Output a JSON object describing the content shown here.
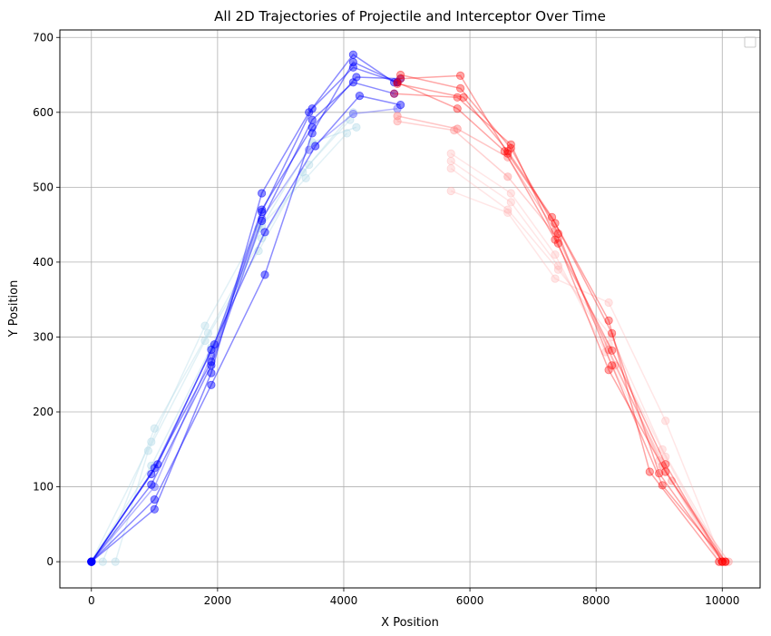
{
  "chart_data": {
    "type": "line",
    "title": "All 2D Trajectories of Projectile and Interceptor Over Time",
    "xlabel": "X Position",
    "ylabel": "Y Position",
    "xlim": [
      -500,
      10600
    ],
    "ylim": [
      -35,
      710
    ],
    "xticks": [
      0,
      2000,
      4000,
      6000,
      8000,
      10000
    ],
    "yticks": [
      0,
      100,
      200,
      300,
      400,
      500,
      600,
      700
    ],
    "grid": true,
    "legend": {
      "entries": [],
      "placement": "top-right"
    },
    "marker": "circle",
    "colors": {
      "interceptor_early": "#add8e6",
      "interceptor_late": "#0000ff",
      "projectile_early": "#ffb6b6",
      "projectile_late": "#ff0000"
    },
    "series": [
      {
        "group": "interceptor",
        "points": [
          [
            0,
            0
          ],
          [
            950,
            160
          ],
          [
            1800,
            315
          ],
          [
            2650,
            445
          ],
          [
            3400,
            512
          ],
          [
            4050,
            572
          ]
        ],
        "color": "#add8e6",
        "alpha": 0.35
      },
      {
        "group": "interceptor",
        "points": [
          [
            180,
            0
          ],
          [
            1000,
            178
          ],
          [
            1850,
            305
          ],
          [
            2700,
            432
          ],
          [
            3450,
            530
          ],
          [
            4100,
            590
          ]
        ],
        "color": "#add8e6",
        "alpha": 0.35
      },
      {
        "group": "interceptor",
        "points": [
          [
            380,
            0
          ],
          [
            900,
            148
          ],
          [
            1800,
            295
          ],
          [
            2650,
            415
          ],
          [
            3350,
            520
          ],
          [
            4150,
            600
          ]
        ],
        "color": "#add8e6",
        "alpha": 0.35
      },
      {
        "group": "interceptor",
        "points": [
          [
            0,
            0
          ],
          [
            950,
            128
          ],
          [
            1900,
            286
          ],
          [
            2700,
            448
          ],
          [
            3500,
            560
          ],
          [
            4200,
            580
          ]
        ],
        "color": "#add8e6",
        "alpha": 0.4
      },
      {
        "group": "interceptor",
        "points": [
          [
            0,
            0
          ],
          [
            1000,
            100
          ],
          [
            1900,
            275
          ],
          [
            2700,
            458
          ],
          [
            3450,
            550
          ],
          [
            4150,
            598
          ],
          [
            4850,
            605
          ]
        ],
        "color": "#6f6fff",
        "alpha": 0.5
      },
      {
        "group": "interceptor",
        "points": [
          [
            0,
            0
          ],
          [
            950,
            103
          ],
          [
            1900,
            262
          ],
          [
            2700,
            455
          ],
          [
            3500,
            590
          ],
          [
            4150,
            640
          ],
          [
            4800,
            625
          ]
        ],
        "color": "#0000ff",
        "alpha": 0.45
      },
      {
        "group": "interceptor",
        "points": [
          [
            0,
            0
          ],
          [
            1000,
            83
          ],
          [
            1900,
            236
          ],
          [
            2750,
            383
          ],
          [
            3500,
            572
          ],
          [
            4150,
            667
          ],
          [
            4850,
            640
          ]
        ],
        "color": "#0000ff",
        "alpha": 0.45
      },
      {
        "group": "interceptor",
        "points": [
          [
            0,
            0
          ],
          [
            1000,
            70
          ],
          [
            1900,
            252
          ],
          [
            2700,
            492
          ],
          [
            3450,
            600
          ],
          [
            4150,
            677
          ],
          [
            4800,
            640
          ]
        ],
        "color": "#0000ff",
        "alpha": 0.45
      },
      {
        "group": "interceptor",
        "points": [
          [
            0,
            0
          ],
          [
            950,
            117
          ],
          [
            1900,
            267
          ],
          [
            2700,
            467
          ],
          [
            3500,
            605
          ],
          [
            4150,
            660
          ],
          [
            4850,
            640
          ]
        ],
        "color": "#0000ff",
        "alpha": 0.45
      },
      {
        "group": "interceptor",
        "points": [
          [
            0,
            0
          ],
          [
            1000,
            125
          ],
          [
            1950,
            290
          ],
          [
            2700,
            470
          ],
          [
            3500,
            580
          ],
          [
            4200,
            647
          ],
          [
            4900,
            645
          ]
        ],
        "color": "#0000ff",
        "alpha": 0.45
      },
      {
        "group": "interceptor",
        "points": [
          [
            0,
            0
          ],
          [
            1050,
            130
          ],
          [
            1900,
            283
          ],
          [
            2750,
            440
          ],
          [
            3550,
            555
          ],
          [
            4250,
            622
          ],
          [
            4900,
            610
          ]
        ],
        "color": "#0000ff",
        "alpha": 0.45
      },
      {
        "group": "projectile",
        "points": [
          [
            10000,
            0
          ],
          [
            9100,
            188
          ],
          [
            8200,
            346
          ],
          [
            7350,
            378
          ],
          [
            6600,
            466
          ],
          [
            5700,
            495
          ]
        ],
        "color": "#ffb6b6",
        "alpha": 0.35
      },
      {
        "group": "projectile",
        "points": [
          [
            10050,
            0
          ],
          [
            9050,
            150
          ],
          [
            8250,
            300
          ],
          [
            7400,
            390
          ],
          [
            6600,
            470
          ],
          [
            5700,
            525
          ]
        ],
        "color": "#ffb6b6",
        "alpha": 0.35
      },
      {
        "group": "projectile",
        "points": [
          [
            10000,
            0
          ],
          [
            9100,
            140
          ],
          [
            8200,
            290
          ],
          [
            7400,
            395
          ],
          [
            6650,
            480
          ],
          [
            5700,
            535
          ]
        ],
        "color": "#ffb6b6",
        "alpha": 0.35
      },
      {
        "group": "projectile",
        "points": [
          [
            9950,
            0
          ],
          [
            9000,
            135
          ],
          [
            8150,
            280
          ],
          [
            7350,
            410
          ],
          [
            6650,
            492
          ],
          [
            5700,
            545
          ]
        ],
        "color": "#ffb6b6",
        "alpha": 0.35
      },
      {
        "group": "projectile",
        "points": [
          [
            10100,
            0
          ],
          [
            9200,
            108
          ],
          [
            8300,
            262
          ],
          [
            7400,
            432
          ],
          [
            6600,
            514
          ],
          [
            5750,
            576
          ],
          [
            4850,
            588
          ]
        ],
        "color": "#ff9a9a",
        "alpha": 0.45
      },
      {
        "group": "projectile",
        "points": [
          [
            10000,
            0
          ],
          [
            9050,
            128
          ],
          [
            8200,
            283
          ],
          [
            7350,
            442
          ],
          [
            6600,
            540
          ],
          [
            5800,
            578
          ],
          [
            4850,
            595
          ]
        ],
        "color": "#ff8080",
        "alpha": 0.45
      },
      {
        "group": "projectile",
        "points": [
          [
            10050,
            0
          ],
          [
            9100,
            120
          ],
          [
            8200,
            256
          ],
          [
            7400,
            425
          ],
          [
            6650,
            557
          ],
          [
            5800,
            620
          ],
          [
            4800,
            625
          ]
        ],
        "color": "#ff0000",
        "alpha": 0.35
      },
      {
        "group": "projectile",
        "points": [
          [
            10000,
            0
          ],
          [
            9000,
            118
          ],
          [
            8250,
            305
          ],
          [
            7350,
            452
          ],
          [
            6600,
            545
          ],
          [
            5850,
            649
          ],
          [
            4900,
            645
          ]
        ],
        "color": "#ff0000",
        "alpha": 0.35
      },
      {
        "group": "projectile",
        "points": [
          [
            9950,
            0
          ],
          [
            8850,
            120
          ],
          [
            8200,
            322
          ],
          [
            7300,
            460
          ],
          [
            6600,
            548
          ],
          [
            5900,
            620
          ],
          [
            4850,
            638
          ]
        ],
        "color": "#ff0000",
        "alpha": 0.35
      },
      {
        "group": "projectile",
        "points": [
          [
            10050,
            0
          ],
          [
            9050,
            102
          ],
          [
            8250,
            262
          ],
          [
            7400,
            438
          ],
          [
            6650,
            552
          ],
          [
            5850,
            632
          ],
          [
            4900,
            650
          ]
        ],
        "color": "#ff0000",
        "alpha": 0.35
      },
      {
        "group": "projectile",
        "points": [
          [
            10000,
            0
          ],
          [
            9100,
            130
          ],
          [
            8250,
            282
          ],
          [
            7350,
            430
          ],
          [
            6550,
            548
          ],
          [
            5800,
            605
          ],
          [
            4850,
            640
          ]
        ],
        "color": "#ff0000",
        "alpha": 0.35
      }
    ]
  }
}
